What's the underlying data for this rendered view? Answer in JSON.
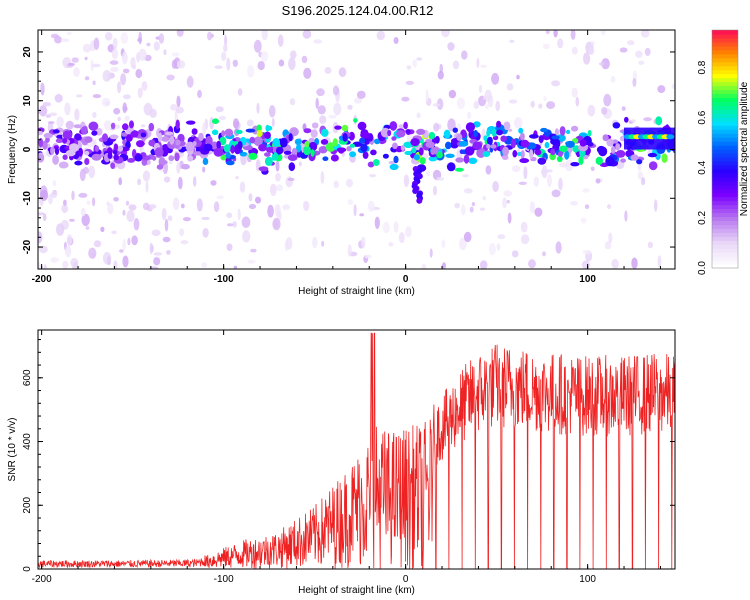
{
  "title": "S196.2025.124.04.00.R12",
  "chart_data": [
    {
      "type": "heatmap",
      "title": "S196.2025.124.04.00.R12",
      "xlabel": "Height of straight line (km)",
      "ylabel": "Frequency (Hz)",
      "xlim": [
        -202,
        148
      ],
      "ylim": [
        -24.5,
        24.5
      ],
      "xticks": [
        "-200",
        "-100",
        "0",
        "100"
      ],
      "xtick_values": [
        -200,
        -100,
        0,
        100
      ],
      "yticks": [
        "20",
        "10",
        "0",
        "-10",
        "-20"
      ],
      "ytick_values": [
        20,
        10,
        0,
        -10,
        -20
      ],
      "colorbar": {
        "label": "Normalized spectral amplitude",
        "range": [
          0.0,
          0.95
        ],
        "ticks": [
          "0.0",
          "0.2",
          "0.4",
          "0.6",
          "0.8"
        ],
        "tick_values": [
          0.0,
          0.2,
          0.4,
          0.6,
          0.8
        ],
        "colormap": [
          "#ffffff",
          "#e8d6f8",
          "#b878f0",
          "#7b00ff",
          "#2a00ff",
          "#0060ff",
          "#00e0ff",
          "#00ff60",
          "#ffff00",
          "#ff8000",
          "#ff0060"
        ]
      },
      "band": {
        "center_hz": 1,
        "half_width_hz": 4,
        "peak_amplitude": 0.95,
        "peak_x_range": [
          120,
          148
        ]
      }
    },
    {
      "type": "line",
      "xlabel": "Height of straight line (km)",
      "ylabel": "SNR (10 * v/v)",
      "xlim": [
        -202,
        148
      ],
      "ylim": [
        0,
        750
      ],
      "xticks": [
        "-200",
        "-100",
        "0",
        "100"
      ],
      "xtick_values": [
        -200,
        -100,
        0,
        100
      ],
      "yticks": [
        "0",
        "200",
        "400",
        "600"
      ],
      "ytick_values": [
        0,
        200,
        400,
        600
      ],
      "color": "#ee2222",
      "envelope": {
        "x": [
          -202,
          -150,
          -115,
          -105,
          -90,
          -70,
          -50,
          -35,
          -25,
          -17,
          -10,
          -5,
          0,
          10,
          20,
          30,
          40,
          50,
          60,
          80,
          100,
          120,
          140,
          148
        ],
        "y": [
          25,
          25,
          28,
          55,
          90,
          120,
          200,
          300,
          380,
          460,
          440,
          440,
          450,
          460,
          520,
          600,
          650,
          680,
          670,
          650,
          640,
          640,
          650,
          640
        ]
      }
    }
  ]
}
